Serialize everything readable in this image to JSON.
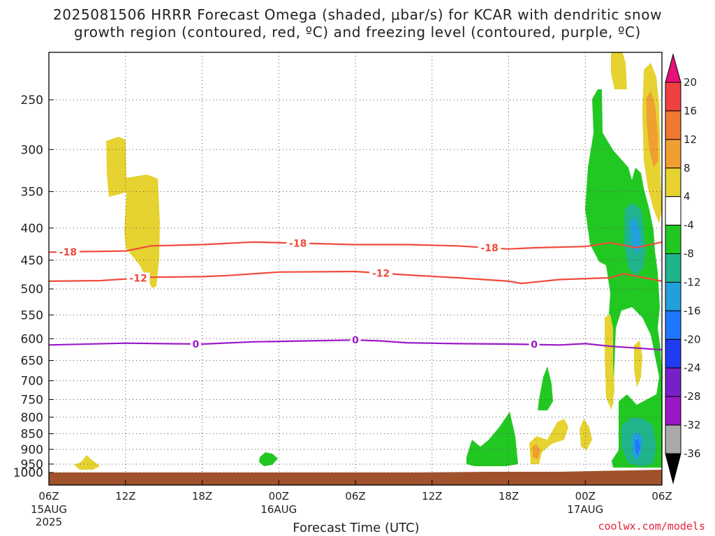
{
  "title_line1": "2025081506 HRRR Forecast Omega (shaded, μbar/s) for KCAR with dendritic snow",
  "title_line2": "growth region (contoured, red, ºC) and freezing level (contoured, purple, ºC)",
  "credit": "coolwx.com/models",
  "chart_data": {
    "type": "heatmap",
    "title": "2025081506 HRRR Forecast Omega (shaded, μbar/s) for KCAR with dendritic snow growth region (contoured, red, ºC) and freezing level (contoured, purple, ºC)",
    "xlabel": "Forecast Time (UTC)",
    "ylabel": "",
    "x_range_hours": [
      0,
      48
    ],
    "x_ticks": [
      {
        "h": 0,
        "label": "06Z",
        "sub": [
          "15AUG",
          "2025"
        ]
      },
      {
        "h": 6,
        "label": "12Z",
        "sub": []
      },
      {
        "h": 12,
        "label": "18Z",
        "sub": []
      },
      {
        "h": 18,
        "label": "00Z",
        "sub": [
          "16AUG"
        ]
      },
      {
        "h": 24,
        "label": "06Z",
        "sub": []
      },
      {
        "h": 30,
        "label": "12Z",
        "sub": []
      },
      {
        "h": 36,
        "label": "18Z",
        "sub": []
      },
      {
        "h": 42,
        "label": "00Z",
        "sub": [
          "17AUG"
        ]
      },
      {
        "h": 48,
        "label": "06Z",
        "sub": []
      }
    ],
    "y_axis": "pressure_mb",
    "y_ticks": [
      250,
      300,
      350,
      400,
      450,
      500,
      550,
      600,
      650,
      700,
      750,
      800,
      850,
      900,
      950,
      1000
    ],
    "grid": true,
    "colorbar": {
      "labels": [
        "20",
        "16",
        "12",
        "8",
        "4",
        "-4",
        "-8",
        "-12",
        "-16",
        "-20",
        "-24",
        "-28",
        "-32",
        "-36"
      ],
      "colors": [
        "#e8107a",
        "#f04040",
        "#f07830",
        "#f0a030",
        "#e6d230",
        "#ffffff",
        "#22c822",
        "#20b48c",
        "#22a0dc",
        "#1f78ff",
        "#1f3cf0",
        "#7820c8",
        "#9a18c8",
        "#aaaaaa",
        "#000000"
      ]
    },
    "contours": [
      {
        "label": "-18",
        "color": "#f04a3c",
        "points": [
          [
            0,
            437
          ],
          [
            6,
            435
          ],
          [
            8,
            427
          ],
          [
            12,
            425
          ],
          [
            16,
            421
          ],
          [
            20,
            423
          ],
          [
            24,
            425
          ],
          [
            28,
            425
          ],
          [
            32,
            427
          ],
          [
            36,
            432
          ],
          [
            38,
            430
          ],
          [
            42,
            428
          ],
          [
            44,
            422
          ],
          [
            46,
            430
          ],
          [
            48,
            421
          ]
        ],
        "label_at": [
          1.5,
          19.5,
          34.5
        ]
      },
      {
        "label": "-12",
        "color": "#f04a3c",
        "points": [
          [
            0,
            486
          ],
          [
            4,
            485
          ],
          [
            6,
            482
          ],
          [
            8,
            479
          ],
          [
            12,
            478
          ],
          [
            14,
            476
          ],
          [
            18,
            470
          ],
          [
            24,
            469
          ],
          [
            28,
            475
          ],
          [
            32,
            480
          ],
          [
            36,
            486
          ],
          [
            37,
            490
          ],
          [
            40,
            483
          ],
          [
            44,
            480
          ],
          [
            45,
            473
          ],
          [
            48,
            486
          ]
        ],
        "label_at": [
          7,
          26
        ]
      },
      {
        "label": "0",
        "color": "#9a18c8",
        "points": [
          [
            0,
            614
          ],
          [
            6,
            610
          ],
          [
            12,
            612
          ],
          [
            16,
            607
          ],
          [
            20,
            605
          ],
          [
            24,
            603
          ],
          [
            26,
            605
          ],
          [
            28,
            609
          ],
          [
            32,
            611
          ],
          [
            36,
            612
          ],
          [
            40,
            614
          ],
          [
            42,
            611
          ],
          [
            44,
            617
          ],
          [
            46,
            621
          ],
          [
            48,
            625
          ]
        ],
        "label_at": [
          11.5,
          24,
          38
        ]
      }
    ],
    "omega_regions_positive": [
      {
        "value_range": [
          4,
          8
        ],
        "color": "#e6d230"
      },
      {
        "value_range": [
          8,
          12
        ],
        "color": "#f0a030"
      }
    ],
    "omega_regions_negative": [
      {
        "value_range": [
          -8,
          -4
        ],
        "color": "#22c822"
      },
      {
        "value_range": [
          -12,
          -8
        ],
        "color": "#20b48c"
      },
      {
        "value_range": [
          -16,
          -12
        ],
        "color": "#22a0dc"
      }
    ],
    "ground_color": "#a0522d"
  }
}
